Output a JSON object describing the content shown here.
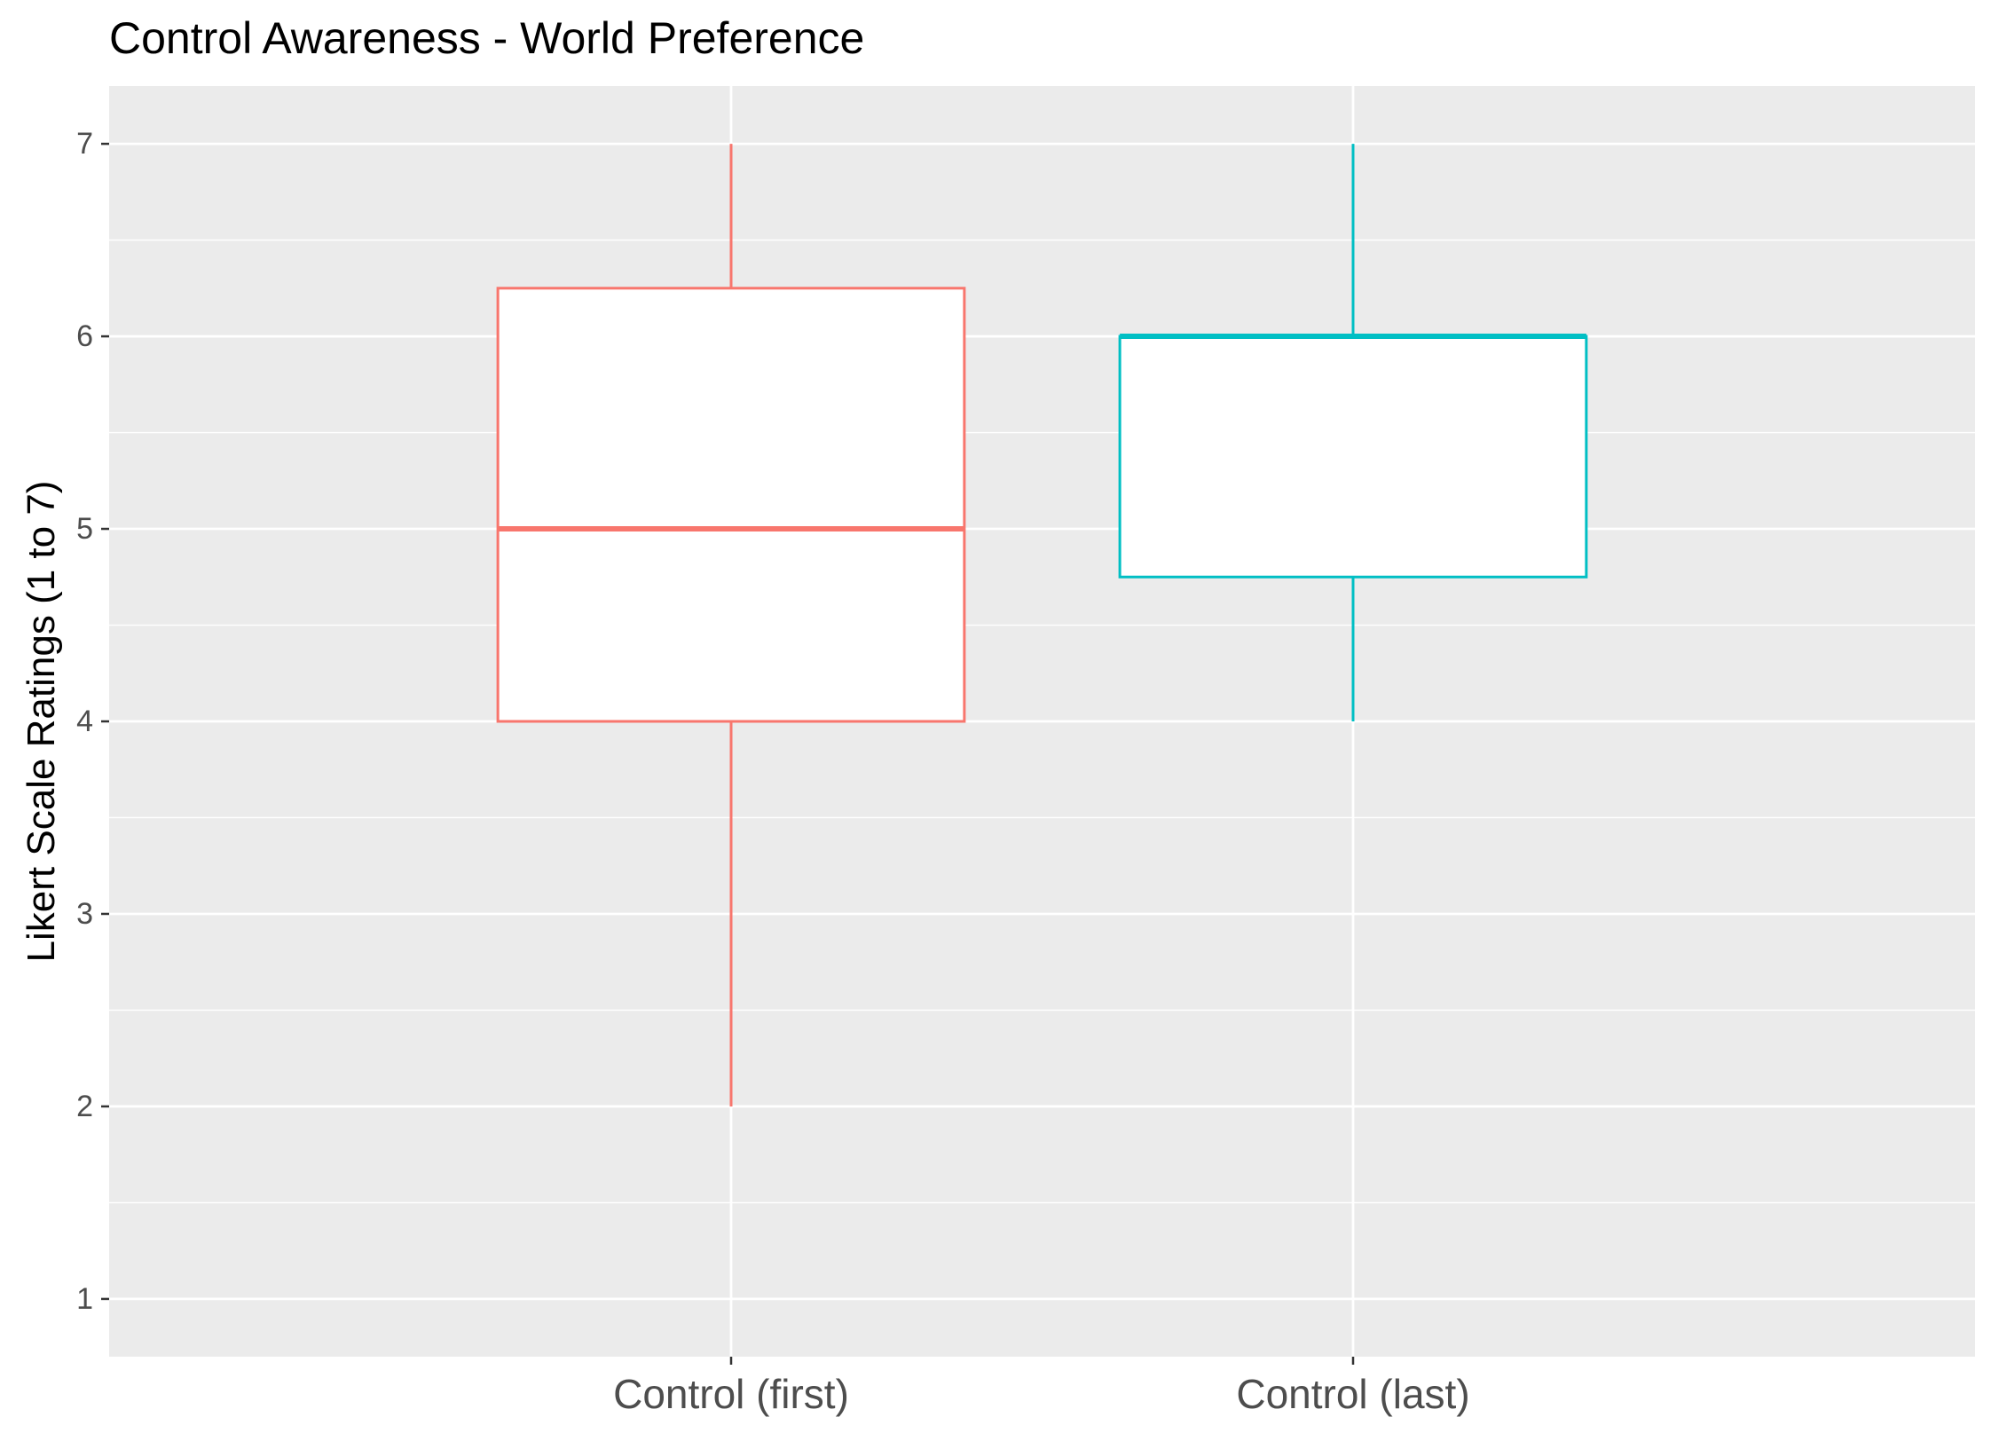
{
  "chart_data": {
    "type": "boxplot",
    "title": "Control Awareness - World Preference",
    "xlabel": "",
    "ylabel": "Likert Scale Ratings (1 to 7)",
    "categories": [
      "Control (first)",
      "Control (last)"
    ],
    "ylim": [
      0.7,
      7.3
    ],
    "y_ticks": [
      1,
      2,
      3,
      4,
      5,
      6,
      7
    ],
    "grid": true,
    "legend": "none",
    "boxes": [
      {
        "category": "Control (first)",
        "whisker_low": 2,
        "q1": 4,
        "median": 5,
        "q3": 6.25,
        "whisker_high": 7,
        "color": "#F8766D"
      },
      {
        "category": "Control (last)",
        "whisker_low": 4,
        "q1": 4.75,
        "median": 6,
        "q3": 6,
        "whisker_high": 7,
        "color": "#00BFC4"
      }
    ]
  },
  "colors": {
    "panel_background": "#EBEBEB",
    "grid_line": "#FFFFFF",
    "box_fill": "#FFFFFF",
    "tick_mark": "#333333"
  }
}
